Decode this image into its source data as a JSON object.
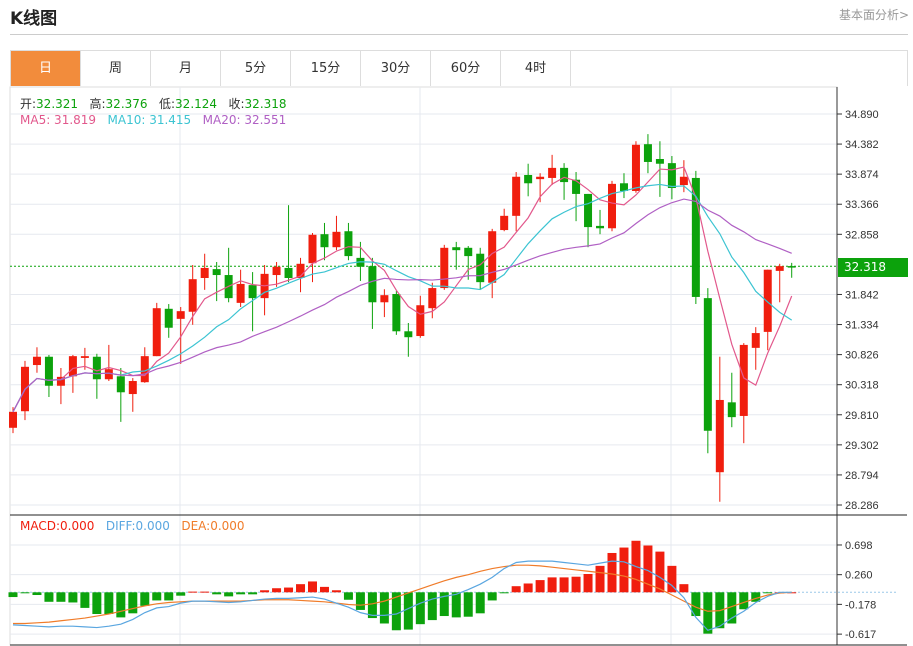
{
  "header": {
    "title": "K线图",
    "fundamental_link": "基本面分析>"
  },
  "tabs": [
    {
      "label": "日",
      "active": true
    },
    {
      "label": "周"
    },
    {
      "label": "月"
    },
    {
      "label": "5分"
    },
    {
      "label": "15分"
    },
    {
      "label": "30分"
    },
    {
      "label": "60分"
    },
    {
      "label": "4时"
    }
  ],
  "ohlc": {
    "open_label": "开:",
    "open": "32.321",
    "high_label": "高:",
    "high": "32.376",
    "low_label": "低:",
    "low": "32.124",
    "close_label": "收:",
    "close": "32.318"
  },
  "ma": {
    "ma5_label": "MA5: 31.819",
    "ma10_label": "MA10: 31.415",
    "ma20_label": "MA20: 32.551"
  },
  "macd_legend": {
    "macd": "MACD:0.000",
    "diff": "DIFF:0.000",
    "dea": "DEA:0.000"
  },
  "current_price": "32.318",
  "colors": {
    "up": "#f01e0e",
    "down": "#0ca20c",
    "ma5": "#e2588c",
    "ma10": "#3cc4d2",
    "ma20": "#b060c4",
    "diff": "#5aa6e0",
    "dea": "#f07c2a",
    "accent": "#f28c3c"
  },
  "chart_data": [
    {
      "type": "candlestick",
      "price_axis_ticks": [
        "34.890",
        "34.382",
        "33.874",
        "33.366",
        "32.858",
        "31.842",
        "31.334",
        "30.826",
        "30.318",
        "29.810",
        "29.302",
        "28.794",
        "28.286"
      ],
      "ylim": [
        28.286,
        34.89
      ],
      "candles_ohlc": [
        [
          29.59,
          29.94,
          29.5,
          29.86
        ],
        [
          29.87,
          30.72,
          29.72,
          30.62
        ],
        [
          30.65,
          30.95,
          30.52,
          30.79
        ],
        [
          30.79,
          30.82,
          30.11,
          30.3
        ],
        [
          30.3,
          30.6,
          29.99,
          30.45
        ],
        [
          30.46,
          30.82,
          30.18,
          30.8
        ],
        [
          30.77,
          30.94,
          30.57,
          30.8
        ],
        [
          30.79,
          30.84,
          30.08,
          30.41
        ],
        [
          30.41,
          30.99,
          30.38,
          30.58
        ],
        [
          30.46,
          30.6,
          29.69,
          30.19
        ],
        [
          30.16,
          30.43,
          29.86,
          30.38
        ],
        [
          30.36,
          30.95,
          30.35,
          30.8
        ],
        [
          30.8,
          31.7,
          30.8,
          31.61
        ],
        [
          31.6,
          31.68,
          31.11,
          31.28
        ],
        [
          31.43,
          31.63,
          30.67,
          31.56
        ],
        [
          31.55,
          32.34,
          31.33,
          32.1
        ],
        [
          32.12,
          32.53,
          31.92,
          32.29
        ],
        [
          32.27,
          32.39,
          31.73,
          32.17
        ],
        [
          32.17,
          32.63,
          31.71,
          31.78
        ],
        [
          31.7,
          32.26,
          31.63,
          32.02
        ],
        [
          32.0,
          32.22,
          31.22,
          31.78
        ],
        [
          31.78,
          32.34,
          31.49,
          32.19
        ],
        [
          32.17,
          32.39,
          31.97,
          32.31
        ],
        [
          32.29,
          33.35,
          32.05,
          32.12
        ],
        [
          32.12,
          32.46,
          31.88,
          32.36
        ],
        [
          32.37,
          32.88,
          32.05,
          32.85
        ],
        [
          32.86,
          33.05,
          32.42,
          32.64
        ],
        [
          32.64,
          33.17,
          32.59,
          32.9
        ],
        [
          32.91,
          33.05,
          32.42,
          32.49
        ],
        [
          32.46,
          32.73,
          32.07,
          32.31
        ],
        [
          32.32,
          32.46,
          31.26,
          31.71
        ],
        [
          31.71,
          31.93,
          31.46,
          31.83
        ],
        [
          31.85,
          31.9,
          31.16,
          31.22
        ],
        [
          31.22,
          31.36,
          30.79,
          31.12
        ],
        [
          31.14,
          31.82,
          31.11,
          31.66
        ],
        [
          31.61,
          32.04,
          31.44,
          31.95
        ],
        [
          31.95,
          32.68,
          31.92,
          32.63
        ],
        [
          32.64,
          32.73,
          32.26,
          32.59
        ],
        [
          32.63,
          32.66,
          32.09,
          32.49
        ],
        [
          32.53,
          32.63,
          31.93,
          32.05
        ],
        [
          32.04,
          32.95,
          31.78,
          32.91
        ],
        [
          32.93,
          33.29,
          32.91,
          33.17
        ],
        [
          33.17,
          33.91,
          32.91,
          33.83
        ],
        [
          33.86,
          34.05,
          33.5,
          33.72
        ],
        [
          33.79,
          33.89,
          33.4,
          33.83
        ],
        [
          33.81,
          34.2,
          33.69,
          33.98
        ],
        [
          33.98,
          34.06,
          33.44,
          33.74
        ],
        [
          33.78,
          33.91,
          33.08,
          33.54
        ],
        [
          33.54,
          33.54,
          32.64,
          32.98
        ],
        [
          33.0,
          33.27,
          32.86,
          32.96
        ],
        [
          32.96,
          33.76,
          32.91,
          33.71
        ],
        [
          33.72,
          33.89,
          33.47,
          33.59
        ],
        [
          33.59,
          34.43,
          33.56,
          34.37
        ],
        [
          34.38,
          34.55,
          33.89,
          34.08
        ],
        [
          34.13,
          34.43,
          33.49,
          34.05
        ],
        [
          34.06,
          34.18,
          33.45,
          33.64
        ],
        [
          33.69,
          34.11,
          33.57,
          33.83
        ],
        [
          33.81,
          33.93,
          31.68,
          31.8
        ],
        [
          31.78,
          31.95,
          29.16,
          29.54
        ],
        [
          28.84,
          30.79,
          28.34,
          30.06
        ],
        [
          30.02,
          30.52,
          29.6,
          29.77
        ],
        [
          29.79,
          31.02,
          29.33,
          30.99
        ],
        [
          30.94,
          31.29,
          30.57,
          31.19
        ],
        [
          31.21,
          32.26,
          30.9,
          32.26
        ],
        [
          32.24,
          32.36,
          31.71,
          32.32
        ],
        [
          32.321,
          32.376,
          32.124,
          32.318
        ]
      ],
      "moving_averages": [
        "MA5",
        "MA10",
        "MA20"
      ],
      "grid": true
    },
    {
      "type": "bar",
      "indicator": "MACD",
      "axis_ticks": [
        "0.698",
        "0.260",
        "-0.178",
        "-0.617"
      ],
      "ylim": [
        -0.7,
        0.8
      ],
      "histogram": [
        -0.07,
        -0.01,
        -0.04,
        -0.14,
        -0.14,
        -0.15,
        -0.23,
        -0.32,
        -0.32,
        -0.37,
        -0.31,
        -0.2,
        -0.12,
        -0.12,
        -0.05,
        0.01,
        0.01,
        -0.03,
        -0.06,
        -0.03,
        -0.03,
        0.03,
        0.06,
        0.07,
        0.12,
        0.16,
        0.08,
        0.03,
        -0.11,
        -0.26,
        -0.38,
        -0.46,
        -0.56,
        -0.55,
        -0.47,
        -0.41,
        -0.35,
        -0.37,
        -0.36,
        -0.31,
        -0.12,
        -0.005,
        0.09,
        0.13,
        0.18,
        0.22,
        0.22,
        0.23,
        0.27,
        0.39,
        0.58,
        0.66,
        0.76,
        0.69,
        0.6,
        0.39,
        0.12,
        -0.35,
        -0.61,
        -0.53,
        -0.46,
        -0.25,
        -0.14,
        -0.01,
        0,
        0
      ],
      "diff": [
        -0.48,
        -0.49,
        -0.5,
        -0.51,
        -0.5,
        -0.5,
        -0.51,
        -0.52,
        -0.5,
        -0.47,
        -0.4,
        -0.3,
        -0.23,
        -0.21,
        -0.16,
        -0.13,
        -0.13,
        -0.14,
        -0.15,
        -0.14,
        -0.12,
        -0.1,
        -0.09,
        -0.09,
        -0.08,
        -0.07,
        -0.1,
        -0.16,
        -0.22,
        -0.3,
        -0.34,
        -0.34,
        -0.32,
        -0.24,
        -0.16,
        -0.1,
        -0.06,
        -0.03,
        0.04,
        0.12,
        0.22,
        0.35,
        0.44,
        0.46,
        0.46,
        0.46,
        0.44,
        0.42,
        0.4,
        0.43,
        0.46,
        0.45,
        0.38,
        0.32,
        0.22,
        0.1,
        -0.08,
        -0.37,
        -0.56,
        -0.5,
        -0.38,
        -0.28,
        -0.15,
        -0.06,
        0,
        0
      ],
      "dea": [
        -0.46,
        -0.46,
        -0.45,
        -0.44,
        -0.42,
        -0.4,
        -0.38,
        -0.35,
        -0.32,
        -0.28,
        -0.24,
        -0.2,
        -0.17,
        -0.15,
        -0.14,
        -0.13,
        -0.13,
        -0.13,
        -0.13,
        -0.13,
        -0.12,
        -0.11,
        -0.11,
        -0.11,
        -0.12,
        -0.13,
        -0.14,
        -0.16,
        -0.18,
        -0.19,
        -0.17,
        -0.13,
        -0.07,
        -0.01,
        0.05,
        0.11,
        0.17,
        0.22,
        0.26,
        0.31,
        0.35,
        0.38,
        0.4,
        0.4,
        0.39,
        0.37,
        0.35,
        0.33,
        0.31,
        0.29,
        0.27,
        0.24,
        0.19,
        0.12,
        0.05,
        -0.04,
        -0.13,
        -0.22,
        -0.28,
        -0.27,
        -0.21,
        -0.15,
        -0.09,
        -0.04,
        -0.01,
        0
      ]
    }
  ]
}
